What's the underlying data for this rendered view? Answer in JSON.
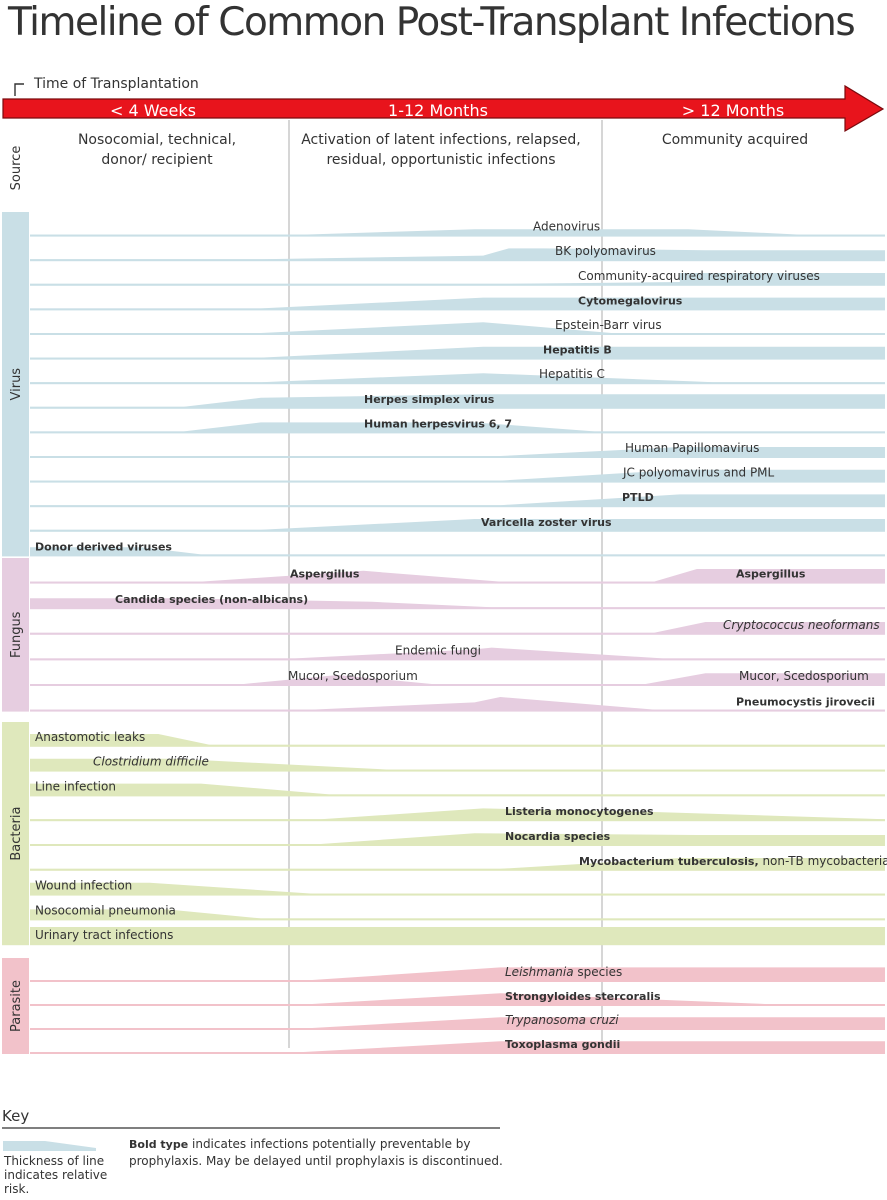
{
  "title": "Timeline of Common Post-Transplant Infections",
  "time_marker_label": "Time of Transplantation",
  "periods": [
    "< 4 Weeks",
    "1-12 Months",
    "> 12 Months"
  ],
  "source": {
    "label": "Source",
    "columns": [
      [
        "Nosocomial, technical,",
        "donor/ recipient"
      ],
      [
        "Activation of latent infections, relapsed,",
        "residual, opportunistic infections"
      ],
      [
        "Community acquired"
      ]
    ]
  },
  "colors": {
    "arrow": "#e8141c",
    "virus": "#c9dfe6",
    "fungus": "#e6cde0",
    "bacteria": "#dfe8bc",
    "parasite": "#f2c2ca",
    "grid": "#cccccc",
    "text": "#333333"
  },
  "groups": [
    {
      "key": "virus",
      "label": "Virus",
      "rows": [
        {
          "parts": [
            {
              "t": "Adenovirus"
            }
          ],
          "profile": [
            [
              0,
              0
            ],
            [
              0.32,
              0
            ],
            [
              0.52,
              3
            ],
            [
              0.77,
              3
            ],
            [
              0.9,
              0
            ],
            [
              1,
              0
            ]
          ]
        },
        {
          "parts": [
            {
              "t": "BK polyomavirus"
            }
          ],
          "profile": [
            [
              0,
              0
            ],
            [
              0.27,
              0
            ],
            [
              0.53,
              2
            ],
            [
              0.56,
              6
            ],
            [
              0.6,
              6
            ],
            [
              0.79,
              5
            ],
            [
              1,
              5
            ]
          ]
        },
        {
          "parts": [
            {
              "t": "Community-acquired respiratory viruses"
            }
          ],
          "profile": [
            [
              0,
              0
            ],
            [
              0.55,
              0
            ],
            [
              0.76,
              1
            ],
            [
              0.76,
              6
            ],
            [
              1,
              6
            ]
          ]
        },
        {
          "parts": [
            {
              "t": "Cytomegalovirus",
              "b": true
            }
          ],
          "profile": [
            [
              0,
              0
            ],
            [
              0.27,
              0
            ],
            [
              0.53,
              6
            ],
            [
              0.81,
              6
            ],
            [
              1,
              6
            ]
          ]
        },
        {
          "parts": [
            {
              "t": "Epstein-Barr virus"
            }
          ],
          "profile": [
            [
              0,
              0
            ],
            [
              0.27,
              0
            ],
            [
              0.53,
              6
            ],
            [
              0.68,
              0
            ],
            [
              1,
              0
            ]
          ]
        },
        {
          "parts": [
            {
              "t": "Hepatitis B",
              "b": true
            }
          ],
          "profile": [
            [
              0,
              0
            ],
            [
              0.27,
              0
            ],
            [
              0.53,
              6
            ],
            [
              1,
              6
            ]
          ]
        },
        {
          "parts": [
            {
              "t": "Hepatitis C"
            }
          ],
          "profile": [
            [
              0,
              0
            ],
            [
              0.27,
              0
            ],
            [
              0.53,
              5
            ],
            [
              0.8,
              0
            ],
            [
              1,
              0
            ]
          ]
        },
        {
          "parts": [
            {
              "t": "Herpes simplex virus",
              "b": true
            }
          ],
          "profile": [
            [
              0,
              0
            ],
            [
              0.18,
              0
            ],
            [
              0.27,
              5
            ],
            [
              0.53,
              7
            ],
            [
              1,
              7
            ]
          ]
        },
        {
          "parts": [
            {
              "t": "Human herpesvirus 6, 7",
              "b": true
            }
          ],
          "profile": [
            [
              0,
              0
            ],
            [
              0.18,
              0
            ],
            [
              0.27,
              5
            ],
            [
              0.52,
              5
            ],
            [
              0.66,
              0
            ],
            [
              1,
              0
            ]
          ]
        },
        {
          "parts": [
            {
              "t": "Human Papillomavirus"
            }
          ],
          "profile": [
            [
              0,
              0
            ],
            [
              0.55,
              0
            ],
            [
              0.76,
              5
            ],
            [
              1,
              5
            ]
          ]
        },
        {
          "parts": [
            {
              "t": "JC polyomavirus and PML"
            }
          ],
          "profile": [
            [
              0,
              0
            ],
            [
              0.55,
              0
            ],
            [
              0.76,
              6
            ],
            [
              1,
              6
            ]
          ]
        },
        {
          "parts": [
            {
              "t": "PTLD",
              "b": true
            }
          ],
          "profile": [
            [
              0,
              0
            ],
            [
              0.55,
              0
            ],
            [
              0.76,
              6
            ],
            [
              1,
              6
            ]
          ]
        },
        {
          "parts": [
            {
              "t": "Varicella zoster virus",
              "b": true
            }
          ],
          "profile": [
            [
              0,
              0
            ],
            [
              0.27,
              0
            ],
            [
              0.52,
              6
            ],
            [
              1,
              6
            ]
          ]
        },
        {
          "parts": [
            {
              "t": "Donor derived viruses",
              "b": true
            }
          ],
          "profile": [
            [
              0,
              4
            ],
            [
              0.13,
              4
            ],
            [
              0.2,
              0
            ],
            [
              1,
              0
            ]
          ]
        }
      ]
    },
    {
      "key": "fungus",
      "label": "Fungus",
      "rows": [
        {
          "parts": [
            {
              "t": "Aspergillus",
              "b": true
            }
          ],
          "profile": [
            [
              0,
              0
            ],
            [
              0.2,
              0
            ],
            [
              0.39,
              6
            ],
            [
              0.55,
              0
            ],
            [
              0.73,
              0
            ],
            [
              0.78,
              7
            ],
            [
              1,
              7
            ]
          ]
        },
        {
          "parts": [
            {
              "t": "Candida species (non-albicans)",
              "b": true
            }
          ],
          "profile": [
            [
              0,
              5
            ],
            [
              0.17,
              5
            ],
            [
              0.4,
              3
            ],
            [
              0.54,
              0
            ],
            [
              1,
              0
            ]
          ]
        },
        {
          "parts": [
            {
              "t": "Cryptococcus neoformans",
              "i": true
            }
          ],
          "profile": [
            [
              0,
              0
            ],
            [
              0.73,
              0
            ],
            [
              0.79,
              6
            ],
            [
              1,
              6
            ]
          ]
        },
        {
          "parts": [
            {
              "t": "Endemic fungi"
            }
          ],
          "profile": [
            [
              0,
              0
            ],
            [
              0.31,
              0
            ],
            [
              0.52,
              5
            ],
            [
              0.54,
              6
            ],
            [
              0.74,
              0
            ],
            [
              1,
              0
            ]
          ]
        },
        {
          "parts": [
            {
              "t": "Mucor, Scedosporium"
            }
          ],
          "profile": [
            [
              0,
              0
            ],
            [
              0.25,
              0
            ],
            [
              0.36,
              5
            ],
            [
              0.47,
              0
            ],
            [
              0.72,
              0
            ],
            [
              0.79,
              6
            ],
            [
              1,
              6
            ]
          ]
        },
        {
          "parts": [
            {
              "t": "Pneumocystis jirovecii",
              "b": true
            }
          ],
          "profile": [
            [
              0,
              0
            ],
            [
              0.33,
              0
            ],
            [
              0.52,
              4
            ],
            [
              0.55,
              7
            ],
            [
              0.73,
              0
            ],
            [
              1,
              0
            ]
          ]
        }
      ]
    },
    {
      "key": "bacteria",
      "label": "Bacteria",
      "rows": [
        {
          "parts": [
            {
              "t": "Anastomotic leaks"
            }
          ],
          "profile": [
            [
              0,
              6
            ],
            [
              0.15,
              6
            ],
            [
              0.21,
              0
            ],
            [
              1,
              0
            ]
          ]
        },
        {
          "parts": [
            {
              "t": "Clostridium difficile",
              "i": true
            }
          ],
          "profile": [
            [
              0,
              6
            ],
            [
              0.17,
              6
            ],
            [
              0.42,
              0
            ],
            [
              1,
              0
            ]
          ]
        },
        {
          "parts": [
            {
              "t": "Line infection"
            }
          ],
          "profile": [
            [
              0,
              6
            ],
            [
              0.2,
              6
            ],
            [
              0.35,
              0
            ],
            [
              1,
              0
            ]
          ]
        },
        {
          "parts": [
            {
              "t": "Listeria monocytogenes",
              "b": true
            }
          ],
          "profile": [
            [
              0,
              0
            ],
            [
              0.34,
              0
            ],
            [
              0.53,
              6
            ],
            [
              0.73,
              4
            ],
            [
              1,
              0
            ]
          ]
        },
        {
          "parts": [
            {
              "t": "Nocardia species",
              "b": true
            }
          ],
          "profile": [
            [
              0,
              0
            ],
            [
              0.34,
              0
            ],
            [
              0.52,
              6
            ],
            [
              0.78,
              5
            ],
            [
              1,
              5
            ]
          ]
        },
        {
          "parts": [
            {
              "t": "Mycobacterium tuberculosis,",
              "b": true
            },
            {
              "t": " non-TB mycobacteria"
            }
          ],
          "profile": [
            [
              0,
              0
            ],
            [
              0.55,
              0
            ],
            [
              0.76,
              6
            ],
            [
              1,
              6
            ]
          ]
        },
        {
          "parts": [
            {
              "t": "Wound infection"
            }
          ],
          "profile": [
            [
              0,
              6
            ],
            [
              0.14,
              6
            ],
            [
              0.33,
              0
            ],
            [
              1,
              0
            ]
          ]
        },
        {
          "parts": [
            {
              "t": "Nosocomial pneumonia"
            }
          ],
          "profile": [
            [
              0,
              5
            ],
            [
              0.16,
              5
            ],
            [
              0.27,
              0
            ],
            [
              1,
              0
            ]
          ]
        },
        {
          "parts": [
            {
              "t": "Urinary tract infections"
            }
          ],
          "profile": [
            [
              0,
              9
            ],
            [
              1,
              9
            ]
          ]
        }
      ]
    },
    {
      "key": "parasite",
      "label": "Parasite",
      "rows": [
        {
          "parts": [
            {
              "t": "Leishmania",
              "i": true
            },
            {
              "t": " species"
            }
          ],
          "profile": [
            [
              0,
              0
            ],
            [
              0.33,
              0
            ],
            [
              0.55,
              7
            ],
            [
              1,
              7
            ]
          ]
        },
        {
          "parts": [
            {
              "t": "Strongyloides stercoralis",
              "b": true
            }
          ],
          "profile": [
            [
              0,
              0
            ],
            [
              0.33,
              0
            ],
            [
              0.55,
              6
            ],
            [
              0.86,
              0
            ],
            [
              1,
              0
            ]
          ]
        },
        {
          "parts": [
            {
              "t": "Trypanosoma cruzi",
              "i": true
            }
          ],
          "profile": [
            [
              0,
              0
            ],
            [
              0.33,
              0
            ],
            [
              0.55,
              6
            ],
            [
              1,
              6
            ]
          ]
        },
        {
          "parts": [
            {
              "t": "Toxoplasma gondii",
              "b": true
            }
          ],
          "profile": [
            [
              0,
              0
            ],
            [
              0.32,
              0
            ],
            [
              0.55,
              6
            ],
            [
              1,
              6
            ]
          ]
        }
      ]
    }
  ],
  "key": {
    "heading": "Key",
    "swatch_text": "Thickness of line indicates relative risk.",
    "bold_label": "Bold type",
    "bold_text": " indicates infections potentially preventable by prophylaxis. May be delayed until prophylaxis is discontinued."
  }
}
